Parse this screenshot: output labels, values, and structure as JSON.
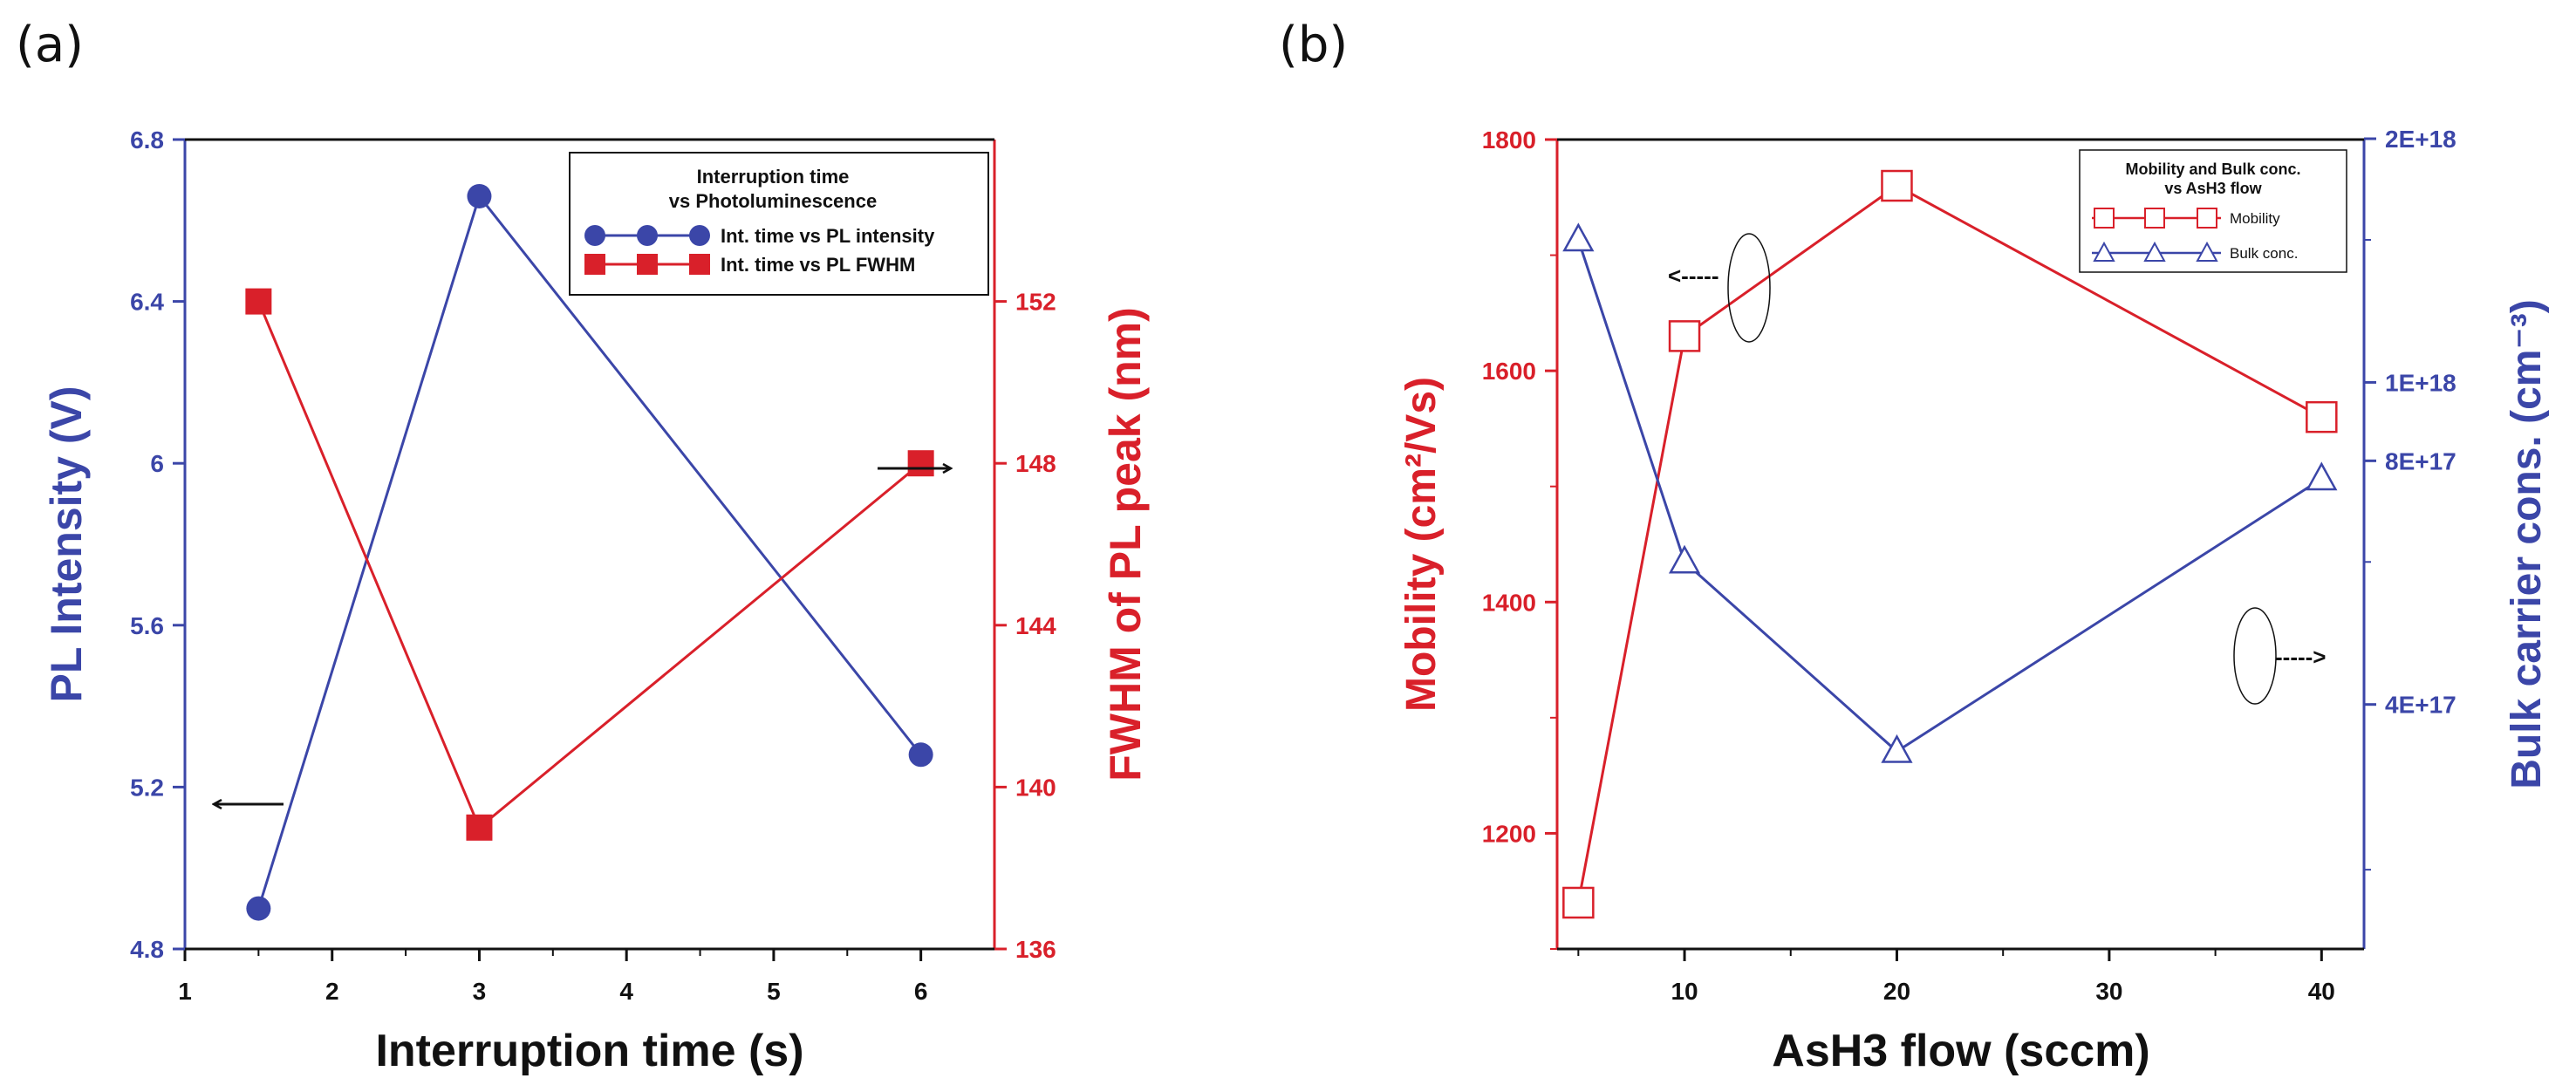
{
  "chart_data": [
    {
      "panel": "(a)",
      "type": "line",
      "x": [
        1.5,
        3,
        6
      ],
      "xlabel": "Interruption time (s)",
      "xlim": [
        1,
        6.5
      ],
      "xticks": [
        1,
        2,
        3,
        4,
        5,
        6
      ],
      "ylabel_left": "PL Intensity (V)",
      "ylim_left": [
        4.8,
        6.8
      ],
      "yticks_left": [
        "4.8",
        "5.2",
        "5.6",
        "6",
        "6.4",
        "6.8"
      ],
      "ylabel_right": "FWHM of PL peak (nm)",
      "ylim_right": [
        136,
        156
      ],
      "yticks_right": [
        "136",
        "140",
        "144",
        "148",
        "152"
      ],
      "series": [
        {
          "name": "Int. time vs PL intensity",
          "axis": "left",
          "color": "#3b46a8",
          "marker": "circle",
          "values": [
            4.9,
            6.66,
            5.28
          ]
        },
        {
          "name": "Int. time vs PL FWHM",
          "axis": "right",
          "color": "#d9202a",
          "marker": "square",
          "values": [
            152,
            139,
            148
          ]
        }
      ],
      "legend": {
        "title_line1": "Interruption time",
        "title_line2": "vs Photoluminescence",
        "placement": "top-right"
      },
      "grid": false
    },
    {
      "panel": "(b)",
      "type": "line",
      "x": [
        5,
        10,
        20,
        40
      ],
      "xlabel": "AsH3 flow (sccm)",
      "xlim": [
        4,
        42
      ],
      "xticks": [
        10,
        20,
        30,
        40
      ],
      "ylabel_left": "Mobility (cm²/Vs)",
      "ylim_left": [
        1100,
        1800
      ],
      "yticks_left": [
        "1200",
        "1400",
        "1600",
        "1800"
      ],
      "ylabel_right": "Bulk carrier cons. (cm⁻³)",
      "ylim_right_log": [
        17.3,
        18.3
      ],
      "yticks_right": [
        "4E+17",
        "8E+17",
        "1E+18",
        "2E+18"
      ],
      "series": [
        {
          "name": "Mobility",
          "axis": "left",
          "color": "#d9202a",
          "marker": "open-square",
          "values": [
            1140,
            1630,
            1760,
            1560
          ]
        },
        {
          "name": "Bulk conc.",
          "axis": "right",
          "color": "#3b46a8",
          "marker": "open-triangle",
          "values": [
            1.5e+18,
            6e+17,
            3.5e+17,
            7.6e+17
          ]
        }
      ],
      "legend": {
        "title_line1": "Mobility and Bulk conc.",
        "title_line2": "vs AsH3 flow",
        "placement": "top-right"
      },
      "annotations": [
        "<-----",
        "----->"
      ],
      "grid": false
    }
  ]
}
